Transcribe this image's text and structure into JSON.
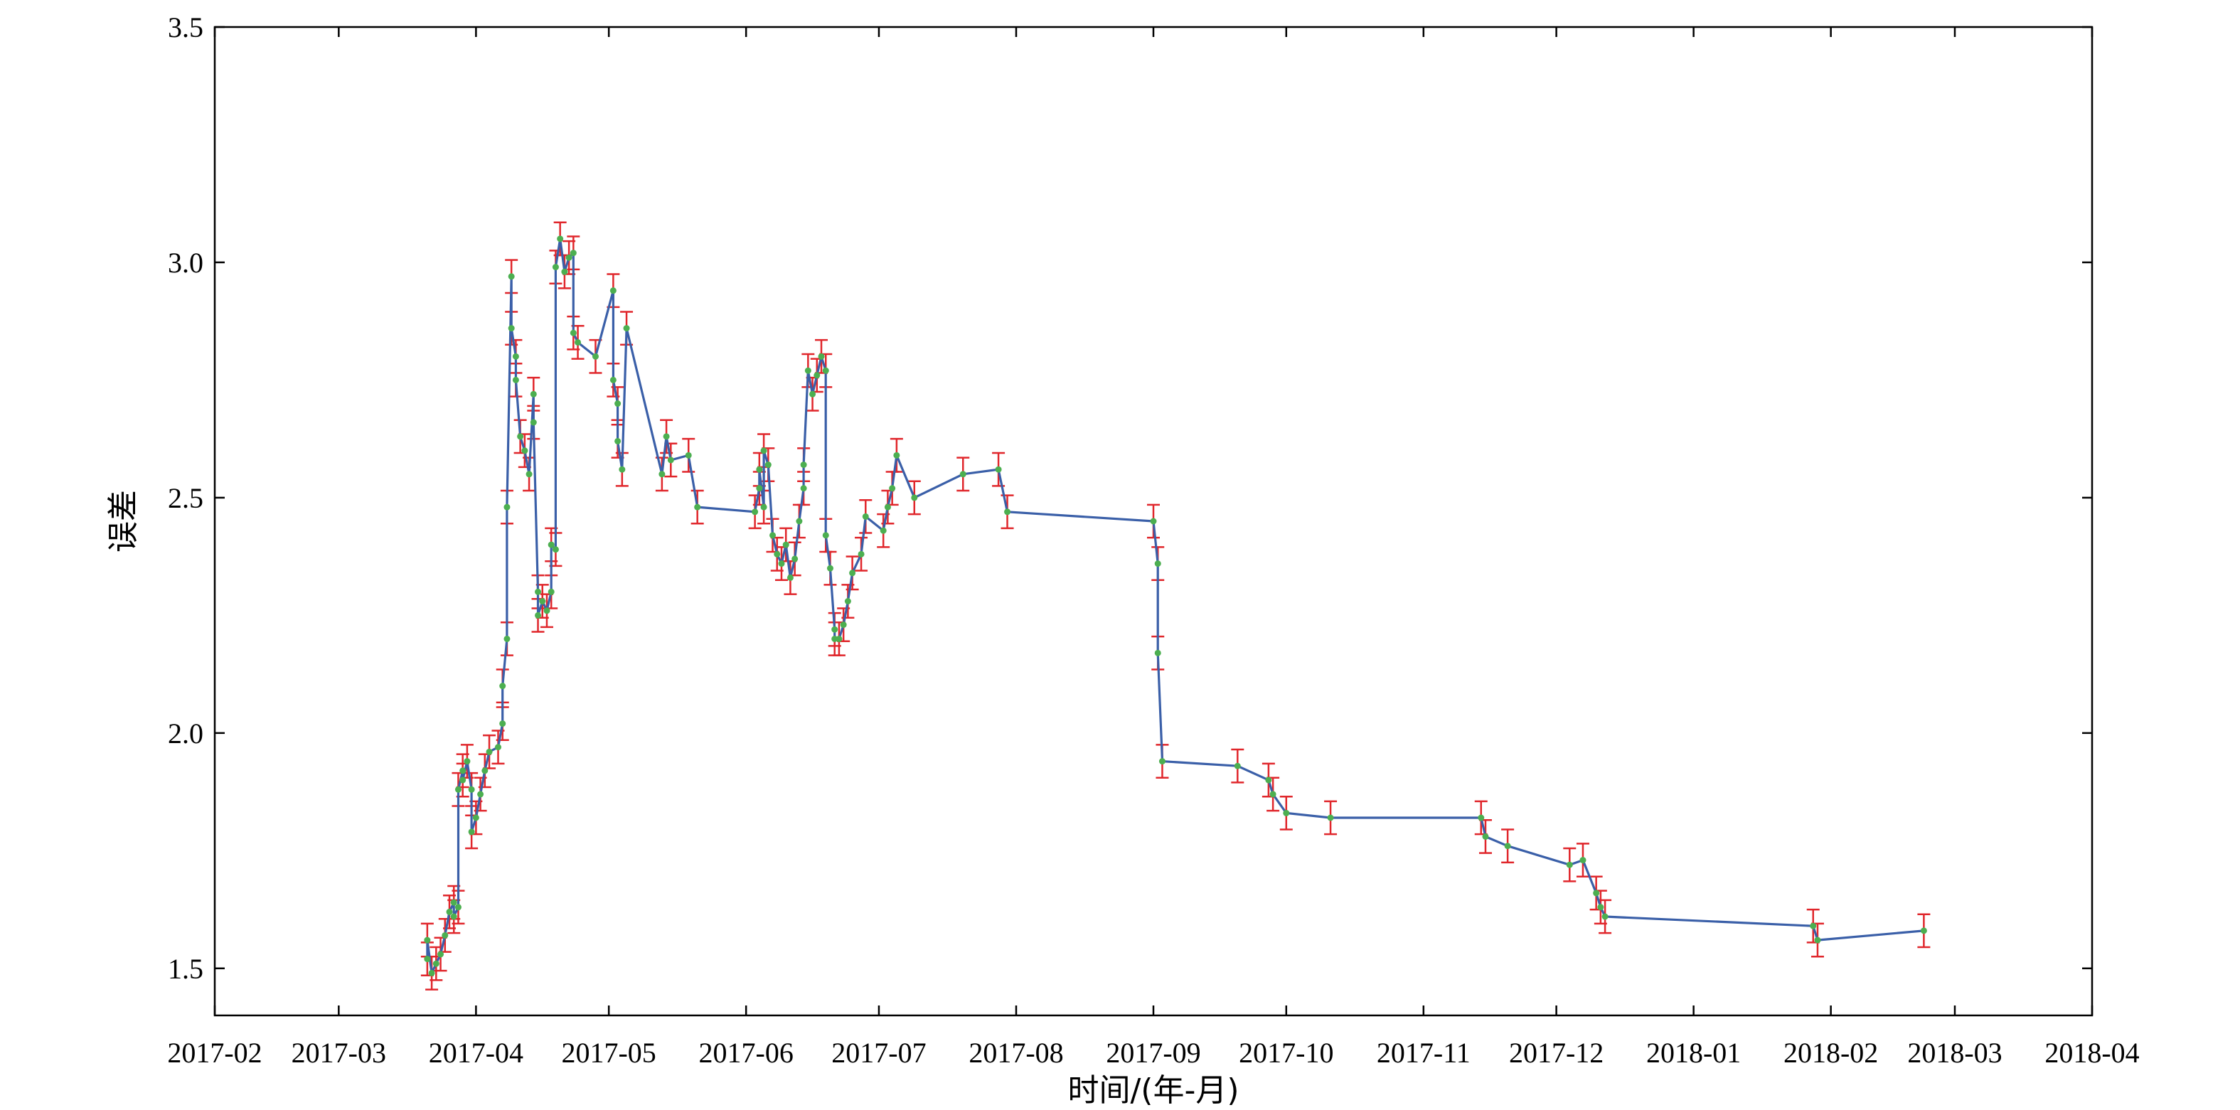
{
  "chart_data": {
    "type": "line",
    "title": "",
    "xlabel": "时间/(年-月)",
    "ylabel": "误差",
    "ylim": [
      1.4,
      3.5
    ],
    "xlim": [
      "2017-02-01",
      "2018-04-01"
    ],
    "x_ticks": [
      "2017-02",
      "2017-03",
      "2017-04",
      "2017-05",
      "2017-06",
      "2017-07",
      "2017-08",
      "2017-09",
      "2017-10",
      "2017-11",
      "2017-12",
      "2018-01",
      "2018-02",
      "2018-03",
      "2018-04"
    ],
    "y_ticks": [
      "1.5",
      "2.0",
      "2.5",
      "3.0",
      "3.5"
    ],
    "grid": false,
    "colors": {
      "line": "#3a5fa8",
      "marker": "#4caf50",
      "error_bar": "#e0262b"
    },
    "error_bar": 0.035,
    "series": [
      {
        "points": [
          [
            "2017-03-21",
            1.52
          ],
          [
            "2017-03-21",
            1.56
          ],
          [
            "2017-03-22",
            1.49
          ],
          [
            "2017-03-23",
            1.51
          ],
          [
            "2017-03-24",
            1.53
          ],
          [
            "2017-03-25",
            1.57
          ],
          [
            "2017-03-26",
            1.62
          ],
          [
            "2017-03-27",
            1.64
          ],
          [
            "2017-03-27",
            1.61
          ],
          [
            "2017-03-28",
            1.63
          ],
          [
            "2017-03-28",
            1.88
          ],
          [
            "2017-03-29",
            1.92
          ],
          [
            "2017-03-29",
            1.9
          ],
          [
            "2017-03-30",
            1.94
          ],
          [
            "2017-03-31",
            1.88
          ],
          [
            "2017-03-31",
            1.79
          ],
          [
            "2017-04-01",
            1.82
          ],
          [
            "2017-04-02",
            1.87
          ],
          [
            "2017-04-03",
            1.92
          ],
          [
            "2017-04-04",
            1.96
          ],
          [
            "2017-04-06",
            1.97
          ],
          [
            "2017-04-07",
            2.02
          ],
          [
            "2017-04-07",
            2.1
          ],
          [
            "2017-04-08",
            2.2
          ],
          [
            "2017-04-08",
            2.48
          ],
          [
            "2017-04-09",
            2.97
          ],
          [
            "2017-04-09",
            2.86
          ],
          [
            "2017-04-10",
            2.8
          ],
          [
            "2017-04-10",
            2.75
          ],
          [
            "2017-04-11",
            2.63
          ],
          [
            "2017-04-12",
            2.6
          ],
          [
            "2017-04-13",
            2.55
          ],
          [
            "2017-04-14",
            2.72
          ],
          [
            "2017-04-14",
            2.66
          ],
          [
            "2017-04-15",
            2.3
          ],
          [
            "2017-04-15",
            2.25
          ],
          [
            "2017-04-16",
            2.28
          ],
          [
            "2017-04-17",
            2.26
          ],
          [
            "2017-04-18",
            2.3
          ],
          [
            "2017-04-18",
            2.4
          ],
          [
            "2017-04-19",
            2.39
          ],
          [
            "2017-04-19",
            2.99
          ],
          [
            "2017-04-20",
            3.05
          ],
          [
            "2017-04-21",
            2.98
          ],
          [
            "2017-04-22",
            3.01
          ],
          [
            "2017-04-23",
            3.02
          ],
          [
            "2017-04-23",
            2.85
          ],
          [
            "2017-04-24",
            2.83
          ],
          [
            "2017-04-28",
            2.8
          ],
          [
            "2017-05-02",
            2.94
          ],
          [
            "2017-05-02",
            2.75
          ],
          [
            "2017-05-03",
            2.7
          ],
          [
            "2017-05-03",
            2.62
          ],
          [
            "2017-05-04",
            2.56
          ],
          [
            "2017-05-05",
            2.86
          ],
          [
            "2017-05-13",
            2.55
          ],
          [
            "2017-05-14",
            2.63
          ],
          [
            "2017-05-15",
            2.58
          ],
          [
            "2017-05-19",
            2.59
          ],
          [
            "2017-05-21",
            2.48
          ],
          [
            "2017-06-03",
            2.47
          ],
          [
            "2017-06-04",
            2.52
          ],
          [
            "2017-06-04",
            2.56
          ],
          [
            "2017-06-05",
            2.48
          ],
          [
            "2017-06-05",
            2.6
          ],
          [
            "2017-06-06",
            2.57
          ],
          [
            "2017-06-07",
            2.42
          ],
          [
            "2017-06-08",
            2.38
          ],
          [
            "2017-06-09",
            2.36
          ],
          [
            "2017-06-10",
            2.4
          ],
          [
            "2017-06-11",
            2.33
          ],
          [
            "2017-06-12",
            2.37
          ],
          [
            "2017-06-13",
            2.45
          ],
          [
            "2017-06-14",
            2.52
          ],
          [
            "2017-06-14",
            2.57
          ],
          [
            "2017-06-15",
            2.77
          ],
          [
            "2017-06-16",
            2.72
          ],
          [
            "2017-06-17",
            2.76
          ],
          [
            "2017-06-18",
            2.8
          ],
          [
            "2017-06-19",
            2.77
          ],
          [
            "2017-06-19",
            2.42
          ],
          [
            "2017-06-20",
            2.35
          ],
          [
            "2017-06-21",
            2.22
          ],
          [
            "2017-06-21",
            2.2
          ],
          [
            "2017-06-22",
            2.2
          ],
          [
            "2017-06-23",
            2.23
          ],
          [
            "2017-06-24",
            2.28
          ],
          [
            "2017-06-25",
            2.34
          ],
          [
            "2017-06-27",
            2.38
          ],
          [
            "2017-06-28",
            2.46
          ],
          [
            "2017-07-02",
            2.43
          ],
          [
            "2017-07-03",
            2.48
          ],
          [
            "2017-07-04",
            2.52
          ],
          [
            "2017-07-05",
            2.59
          ],
          [
            "2017-07-09",
            2.5
          ],
          [
            "2017-07-20",
            2.55
          ],
          [
            "2017-07-28",
            2.56
          ],
          [
            "2017-07-30",
            2.47
          ],
          [
            "2017-09-01",
            2.45
          ],
          [
            "2017-09-02",
            2.36
          ],
          [
            "2017-09-02",
            2.17
          ],
          [
            "2017-09-03",
            1.94
          ],
          [
            "2017-09-20",
            1.93
          ],
          [
            "2017-09-27",
            1.9
          ],
          [
            "2017-09-28",
            1.87
          ],
          [
            "2017-10-01",
            1.83
          ],
          [
            "2017-10-11",
            1.82
          ],
          [
            "2017-11-14",
            1.82
          ],
          [
            "2017-11-15",
            1.78
          ],
          [
            "2017-11-20",
            1.76
          ],
          [
            "2017-12-04",
            1.72
          ],
          [
            "2017-12-07",
            1.73
          ],
          [
            "2017-12-10",
            1.66
          ],
          [
            "2017-12-11",
            1.63
          ],
          [
            "2017-12-12",
            1.61
          ],
          [
            "2018-01-28",
            1.59
          ],
          [
            "2018-01-29",
            1.56
          ],
          [
            "2018-02-22",
            1.58
          ]
        ]
      }
    ]
  }
}
